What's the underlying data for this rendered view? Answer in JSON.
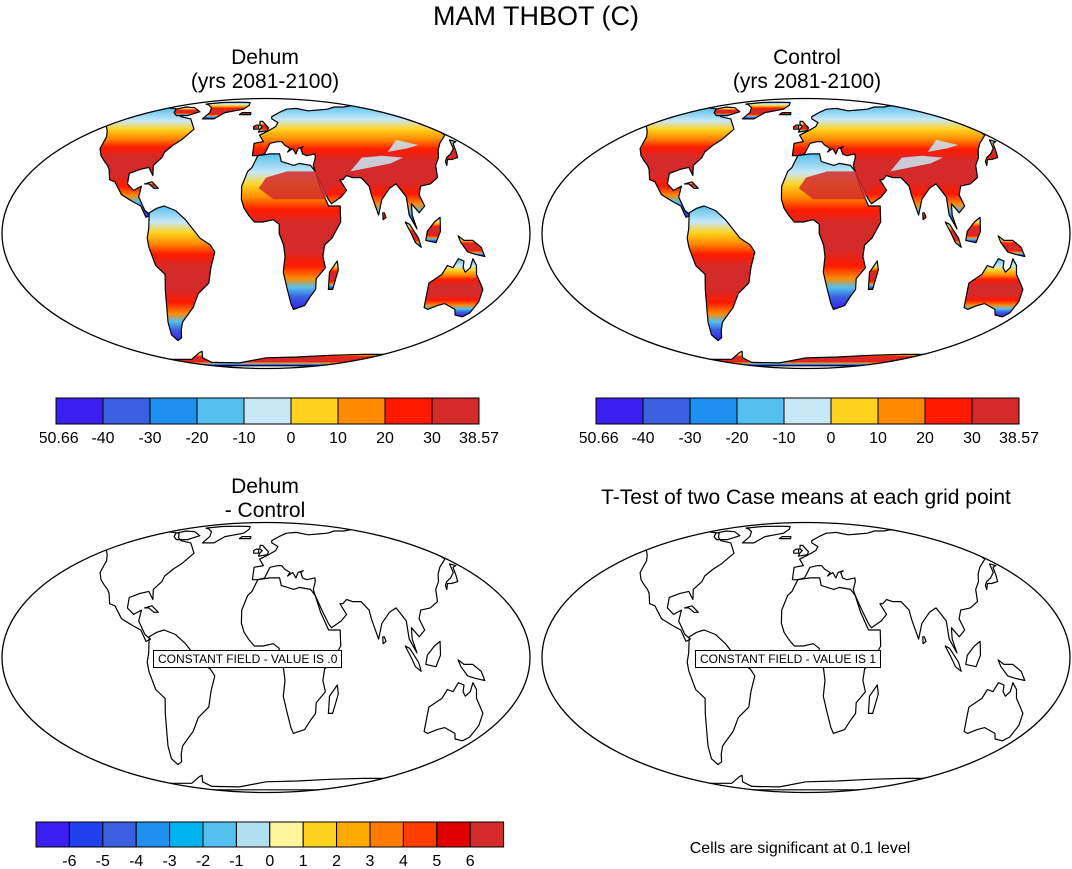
{
  "title": "MAM THBOT (C)",
  "panels": [
    {
      "title_line1": "Dehum",
      "title_line2": "(yrs 2081-2100)"
    },
    {
      "title_line1": "Control",
      "title_line2": "(yrs 2081-2100)"
    },
    {
      "title_line1": "Dehum",
      "title_line2": "- Control",
      "constant_label": "CONSTANT FIELD - VALUE IS .0"
    },
    {
      "title_line1": "T-Test of two Case means at each grid point",
      "constant_label": "CONSTANT FIELD - VALUE IS 1"
    }
  ],
  "significance_note": "Cells are significant at 0.1 level",
  "chart_data": [
    {
      "type": "heatmap",
      "title": "Dehum (yrs 2081-2100)",
      "colorbar": {
        "labels": [
          "-50.66",
          "-40",
          "-30",
          "-20",
          "-10",
          "0",
          "10",
          "20",
          "30",
          "38.57"
        ],
        "colors": [
          "#3a1ff0",
          "#3a60e0",
          "#1e90f0",
          "#55c0f0",
          "#c8e8f6",
          "#ffd21e",
          "#ff8a00",
          "#ff1a00",
          "#d42a2a"
        ]
      }
    },
    {
      "type": "heatmap",
      "title": "Control (yrs 2081-2100)",
      "colorbar": {
        "labels": [
          "-50.66",
          "-40",
          "-30",
          "-20",
          "-10",
          "0",
          "10",
          "20",
          "30",
          "38.57"
        ],
        "colors": [
          "#3a1ff0",
          "#3a60e0",
          "#1e90f0",
          "#55c0f0",
          "#c8e8f6",
          "#ffd21e",
          "#ff8a00",
          "#ff1a00",
          "#d42a2a"
        ]
      }
    },
    {
      "type": "heatmap",
      "title": "Dehum - Control",
      "constant_value": 0,
      "colorbar": {
        "labels": [
          "-6",
          "-5",
          "-4",
          "-3",
          "-2",
          "-1",
          "0",
          "1",
          "2",
          "3",
          "4",
          "5",
          "6"
        ],
        "colors": [
          "#3a1ff0",
          "#2040f0",
          "#3a60e0",
          "#1e90f0",
          "#00b4f0",
          "#55c0f0",
          "#b0dff0",
          "#fff59a",
          "#ffd21e",
          "#ffaa00",
          "#ff7a00",
          "#ff3c00",
          "#e00000",
          "#d42a2a"
        ]
      }
    },
    {
      "type": "heatmap",
      "title": "T-Test of two Case means at each grid point",
      "constant_value": 1
    }
  ]
}
